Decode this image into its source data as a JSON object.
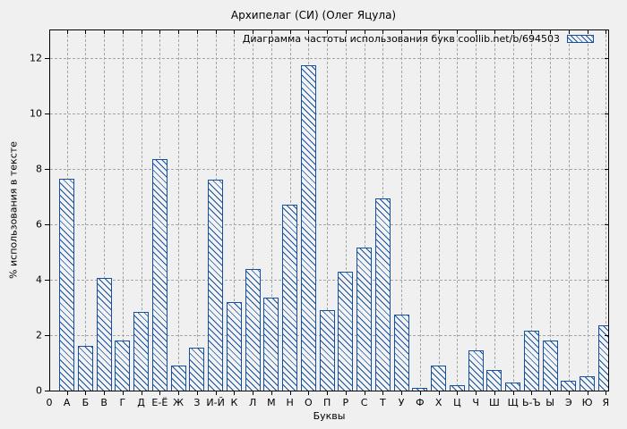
{
  "title": "Архипелаг (СИ) (Олег Яцула)",
  "legend": {
    "label": "Диаграмма частоты использования букв coollib.net/b/694503"
  },
  "colors": {
    "bar_blue": "#1650a2",
    "background": "#f0f0f0",
    "grid_gray": "#a6a6a6",
    "frame_black": "#000000"
  },
  "chart_data": {
    "type": "bar",
    "title": "Архипелаг (СИ) (Олег Яцула)",
    "legend_label": "Диаграмма частоты использования букв coollib.net/b/694503",
    "xlabel": "Буквы",
    "ylabel": "% использования в тексте",
    "origin_tick_label": "0",
    "categories": [
      "А",
      "Б",
      "В",
      "Г",
      "Д",
      "Е-Ё",
      "Ж",
      "З",
      "И-Й",
      "К",
      "Л",
      "М",
      "Н",
      "О",
      "П",
      "Р",
      "С",
      "Т",
      "У",
      "Ф",
      "Х",
      "Ц",
      "Ч",
      "Ш",
      "Щ",
      "Ь-Ъ",
      "Ы",
      "Э",
      "Ю",
      "Я"
    ],
    "values": [
      7.65,
      1.6,
      4.05,
      1.8,
      2.85,
      8.35,
      0.9,
      1.55,
      7.6,
      3.2,
      4.4,
      3.35,
      6.7,
      11.75,
      2.9,
      4.3,
      5.15,
      6.95,
      2.75,
      0.1,
      0.9,
      0.2,
      1.45,
      0.75,
      0.3,
      2.15,
      1.8,
      0.35,
      0.5,
      2.35
    ],
    "yticks": [
      0,
      2,
      4,
      6,
      8,
      10,
      12
    ],
    "ylim": [
      0,
      13
    ],
    "grid": true,
    "grid_style": "dashed",
    "hatch": "diagonal-backslash",
    "legend_position": "top-right-inside"
  }
}
